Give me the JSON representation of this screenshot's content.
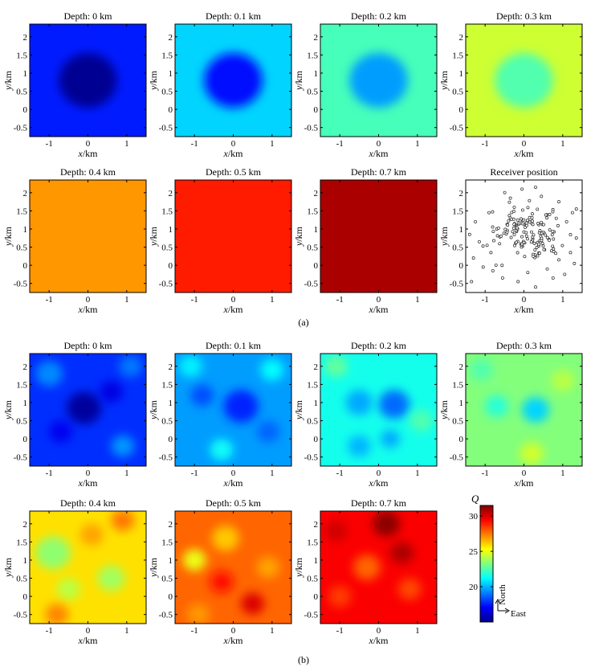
{
  "figure": {
    "label_a": "(a)",
    "label_b": "(b)"
  },
  "axes": {
    "xlabel_var": "x",
    "xlabel_unit": "/km",
    "ylabel_var": "y",
    "ylabel_unit": "/km",
    "xticks": [
      -1,
      0,
      1
    ],
    "yticks": [
      -0.5,
      0,
      0.5,
      1,
      1.5,
      2
    ],
    "xtick_labels": [
      "-1",
      "0",
      "1"
    ],
    "ytick_labels": [
      "-0.5",
      "0",
      "0.5",
      "1",
      "1.5",
      "2"
    ]
  },
  "colorbar": {
    "label": "Q",
    "ticks": [
      20,
      25,
      30
    ],
    "tick_labels": [
      "20",
      "25",
      "30"
    ],
    "min": 15,
    "max": 31.5,
    "colormap": "jet"
  },
  "compass": {
    "north": "North",
    "east": "East"
  },
  "chart_data": [
    {
      "group": "a",
      "type": "heatmap",
      "title": "Depth: 0 km",
      "xlim": [
        -1.5,
        1.5
      ],
      "ylim": [
        -0.75,
        2.35
      ],
      "background_q": 17.5,
      "anomalies": [
        {
          "x": 0,
          "y": 0.8,
          "radius": 0.75,
          "q": 15.3
        }
      ]
    },
    {
      "group": "a",
      "type": "heatmap",
      "title": "Depth: 0.1 km",
      "xlim": [
        -1.5,
        1.5
      ],
      "ylim": [
        -0.75,
        2.35
      ],
      "background_q": 20.5,
      "anomalies": [
        {
          "x": 0,
          "y": 0.8,
          "radius": 0.75,
          "q": 17.3
        }
      ]
    },
    {
      "group": "a",
      "type": "heatmap",
      "title": "Depth: 0.2 km",
      "xlim": [
        -1.5,
        1.5
      ],
      "ylim": [
        -0.75,
        2.35
      ],
      "background_q": 22.3,
      "anomalies": [
        {
          "x": 0,
          "y": 0.8,
          "radius": 0.75,
          "q": 19.6
        }
      ]
    },
    {
      "group": "a",
      "type": "heatmap",
      "title": "Depth: 0.3 km",
      "xlim": [
        -1.5,
        1.5
      ],
      "ylim": [
        -0.75,
        2.35
      ],
      "background_q": 24.5,
      "anomalies": [
        {
          "x": 0,
          "y": 0.8,
          "radius": 0.75,
          "q": 22.5
        }
      ]
    },
    {
      "group": "a",
      "type": "heatmap",
      "title": "Depth: 0.4 km",
      "xlim": [
        -1.5,
        1.5
      ],
      "ylim": [
        -0.75,
        2.35
      ],
      "background_q": 27.0,
      "anomalies": []
    },
    {
      "group": "a",
      "type": "heatmap",
      "title": "Depth: 0.5 km",
      "xlim": [
        -1.5,
        1.5
      ],
      "ylim": [
        -0.75,
        2.35
      ],
      "background_q": 29.0,
      "anomalies": []
    },
    {
      "group": "a",
      "type": "heatmap",
      "title": "Depth: 0.7 km",
      "xlim": [
        -1.5,
        1.5
      ],
      "ylim": [
        -0.75,
        2.35
      ],
      "background_q": 30.8,
      "anomalies": []
    },
    {
      "group": "a",
      "type": "scatter",
      "title": "Receiver position",
      "xlim": [
        -1.5,
        1.5
      ],
      "ylim": [
        -0.75,
        2.35
      ],
      "points": [
        [
          -0.05,
          2.1
        ],
        [
          -1.25,
          1.2
        ],
        [
          0.3,
          2.15
        ],
        [
          0.45,
          1.9
        ],
        [
          0.9,
          1.75
        ],
        [
          1.35,
          1.55
        ],
        [
          -1.15,
          0.65
        ],
        [
          -0.95,
          0.55
        ],
        [
          -1.3,
          0.2
        ],
        [
          -1.05,
          -0.05
        ],
        [
          -0.8,
          -0.15
        ],
        [
          -0.55,
          -0.35
        ],
        [
          -0.15,
          -0.45
        ],
        [
          0.3,
          -0.6
        ],
        [
          0.6,
          -0.1
        ],
        [
          0.9,
          0.15
        ],
        [
          1.2,
          0.35
        ],
        [
          1.35,
          0.75
        ],
        [
          1.1,
          1.2
        ],
        [
          1.25,
          1.45
        ],
        [
          -0.9,
          1.45
        ],
        [
          -1.4,
          0.85
        ],
        [
          -0.7,
          1.0
        ],
        [
          -0.85,
          0.35
        ],
        [
          1.3,
          0.05
        ],
        [
          0.75,
          -0.35
        ],
        [
          -0.35,
          1.85
        ],
        [
          -1.35,
          -0.45
        ],
        [
          1.05,
          -0.25
        ],
        [
          0.1,
          -0.2
        ]
      ],
      "cluster": {
        "x_center": 0.1,
        "y_center": 0.9,
        "x_spread": 0.55,
        "y_spread": 0.5,
        "count": 150
      }
    },
    {
      "group": "b",
      "type": "heatmap",
      "title": "Depth: 0 km",
      "xlim": [
        -1.5,
        1.5
      ],
      "ylim": [
        -0.75,
        2.35
      ],
      "background_q": 17.8,
      "anomalies": [
        {
          "x": -0.1,
          "y": 0.85,
          "radius": 0.45,
          "q": 15.5
        },
        {
          "x": 0.6,
          "y": 1.3,
          "radius": 0.3,
          "q": 16.6
        },
        {
          "x": -0.7,
          "y": 0.2,
          "radius": 0.3,
          "q": 16.8
        },
        {
          "x": 0.9,
          "y": -0.2,
          "radius": 0.3,
          "q": 19.5
        },
        {
          "x": -1.0,
          "y": 1.8,
          "radius": 0.35,
          "q": 19.3
        },
        {
          "x": 1.1,
          "y": 2.0,
          "radius": 0.3,
          "q": 19.0
        }
      ]
    },
    {
      "group": "b",
      "type": "heatmap",
      "title": "Depth: 0.1 km",
      "xlim": [
        -1.5,
        1.5
      ],
      "ylim": [
        -0.75,
        2.35
      ],
      "background_q": 19.6,
      "anomalies": [
        {
          "x": 0.2,
          "y": 0.9,
          "radius": 0.45,
          "q": 17.6
        },
        {
          "x": -0.8,
          "y": 1.2,
          "radius": 0.3,
          "q": 18.3
        },
        {
          "x": -0.3,
          "y": -0.3,
          "radius": 0.3,
          "q": 21.3
        },
        {
          "x": 0.9,
          "y": 0.2,
          "radius": 0.3,
          "q": 18.7
        },
        {
          "x": -1.1,
          "y": 2.0,
          "radius": 0.3,
          "q": 21.0
        },
        {
          "x": 1.0,
          "y": 1.9,
          "radius": 0.3,
          "q": 21.2
        }
      ]
    },
    {
      "group": "b",
      "type": "heatmap",
      "title": "Depth: 0.2 km",
      "xlim": [
        -1.5,
        1.5
      ],
      "ylim": [
        -0.75,
        2.35
      ],
      "background_q": 21.5,
      "anomalies": [
        {
          "x": 0.4,
          "y": 0.95,
          "radius": 0.4,
          "q": 18.8
        },
        {
          "x": -0.5,
          "y": 1.0,
          "radius": 0.35,
          "q": 19.8
        },
        {
          "x": -0.5,
          "y": -0.2,
          "radius": 0.3,
          "q": 20.0
        },
        {
          "x": 0.3,
          "y": 0.0,
          "radius": 0.25,
          "q": 19.8
        },
        {
          "x": -1.1,
          "y": 2.0,
          "radius": 0.3,
          "q": 22.8
        },
        {
          "x": 1.1,
          "y": 0.5,
          "radius": 0.3,
          "q": 22.5
        }
      ]
    },
    {
      "group": "b",
      "type": "heatmap",
      "title": "Depth: 0.3 km",
      "xlim": [
        -1.5,
        1.5
      ],
      "ylim": [
        -0.75,
        2.35
      ],
      "background_q": 23.3,
      "anomalies": [
        {
          "x": 0.3,
          "y": 0.8,
          "radius": 0.35,
          "q": 20.5
        },
        {
          "x": -0.7,
          "y": 0.9,
          "radius": 0.3,
          "q": 21.8
        },
        {
          "x": 0.2,
          "y": -0.4,
          "radius": 0.3,
          "q": 24.6
        },
        {
          "x": -1.1,
          "y": 1.9,
          "radius": 0.3,
          "q": 22.5
        },
        {
          "x": 1.0,
          "y": 1.6,
          "radius": 0.3,
          "q": 24.2
        }
      ]
    },
    {
      "group": "b",
      "type": "heatmap",
      "title": "Depth: 0.4 km",
      "xlim": [
        -1.5,
        1.5
      ],
      "ylim": [
        -0.75,
        2.35
      ],
      "background_q": 25.8,
      "anomalies": [
        {
          "x": -0.9,
          "y": 1.2,
          "radius": 0.45,
          "q": 23.5
        },
        {
          "x": 0.6,
          "y": 0.5,
          "radius": 0.35,
          "q": 23.8
        },
        {
          "x": -0.5,
          "y": 0.2,
          "radius": 0.3,
          "q": 24.2
        },
        {
          "x": 0.9,
          "y": 2.1,
          "radius": 0.3,
          "q": 27.5
        },
        {
          "x": -0.8,
          "y": -0.5,
          "radius": 0.3,
          "q": 27.3
        },
        {
          "x": 0.1,
          "y": 1.7,
          "radius": 0.3,
          "q": 26.8
        }
      ]
    },
    {
      "group": "b",
      "type": "heatmap",
      "title": "Depth: 0.5 km",
      "xlim": [
        -1.5,
        1.5
      ],
      "ylim": [
        -0.75,
        2.35
      ],
      "background_q": 27.8,
      "anomalies": [
        {
          "x": -1.0,
          "y": 1.0,
          "radius": 0.3,
          "q": 25.0
        },
        {
          "x": -0.2,
          "y": 1.6,
          "radius": 0.35,
          "q": 26.2
        },
        {
          "x": 0.5,
          "y": -0.2,
          "radius": 0.3,
          "q": 30.0
        },
        {
          "x": 0.9,
          "y": 0.8,
          "radius": 0.3,
          "q": 26.8
        },
        {
          "x": -0.3,
          "y": 0.4,
          "radius": 0.3,
          "q": 29.2
        },
        {
          "x": -0.9,
          "y": -0.5,
          "radius": 0.3,
          "q": 27.0
        }
      ]
    },
    {
      "group": "b",
      "type": "heatmap",
      "title": "Depth: 0.7 km",
      "xlim": [
        -1.5,
        1.5
      ],
      "ylim": [
        -0.75,
        2.35
      ],
      "background_q": 29.5,
      "anomalies": [
        {
          "x": 0.2,
          "y": 2.0,
          "radius": 0.35,
          "q": 31.3
        },
        {
          "x": -0.3,
          "y": 0.8,
          "radius": 0.35,
          "q": 27.8
        },
        {
          "x": 0.8,
          "y": 0.2,
          "radius": 0.3,
          "q": 28.3
        },
        {
          "x": -1.0,
          "y": 0.0,
          "radius": 0.3,
          "q": 28.5
        },
        {
          "x": 0.6,
          "y": 1.2,
          "radius": 0.3,
          "q": 30.8
        },
        {
          "x": -1.1,
          "y": 1.8,
          "radius": 0.3,
          "q": 30.2
        }
      ]
    }
  ]
}
